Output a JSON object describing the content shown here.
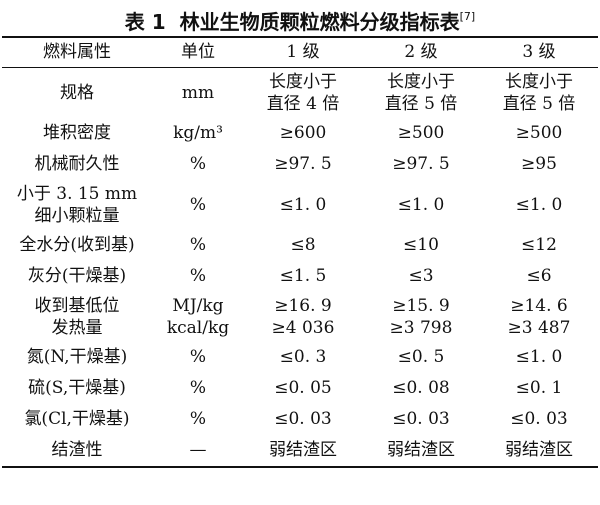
{
  "title": {
    "number": "表 1",
    "text": "林业生物质颗粒燃料分级指标表",
    "ref": "[7]"
  },
  "table": {
    "headers": [
      "燃料属性",
      "单位",
      "1 级",
      "2 级",
      "3 级"
    ],
    "rows": [
      {
        "attr": [
          "规格"
        ],
        "unit": [
          "mm"
        ],
        "g1": [
          "长度小于",
          "直径 4 倍"
        ],
        "g2": [
          "长度小于",
          "直径 5 倍"
        ],
        "g3": [
          "长度小于",
          "直径 5 倍"
        ]
      },
      {
        "attr": [
          "堆积密度"
        ],
        "unit": [
          "kg/m³"
        ],
        "g1": [
          "≥600"
        ],
        "g2": [
          "≥500"
        ],
        "g3": [
          "≥500"
        ]
      },
      {
        "attr": [
          "机械耐久性"
        ],
        "unit": [
          "%"
        ],
        "g1": [
          "≥97. 5"
        ],
        "g2": [
          "≥97. 5"
        ],
        "g3": [
          "≥95"
        ]
      },
      {
        "attr": [
          "小于 3. 15 mm",
          "细小颗粒量"
        ],
        "unit": [
          "%"
        ],
        "g1": [
          "≤1. 0"
        ],
        "g2": [
          "≤1. 0"
        ],
        "g3": [
          "≤1. 0"
        ]
      },
      {
        "attr": [
          "全水分(收到基)"
        ],
        "unit": [
          "%"
        ],
        "g1": [
          "≤8"
        ],
        "g2": [
          "≤10"
        ],
        "g3": [
          "≤12"
        ]
      },
      {
        "attr": [
          "灰分(干燥基)"
        ],
        "unit": [
          "%"
        ],
        "g1": [
          "≤1. 5"
        ],
        "g2": [
          "≤3"
        ],
        "g3": [
          "≤6"
        ]
      },
      {
        "attr": [
          "收到基低位",
          "发热量"
        ],
        "unit": [
          "MJ/kg",
          "kcal/kg"
        ],
        "g1": [
          "≥16. 9",
          "≥4 036"
        ],
        "g2": [
          "≥15. 9",
          "≥3 798"
        ],
        "g3": [
          "≥14. 6",
          "≥3 487"
        ]
      },
      {
        "attr": [
          "氮(N,干燥基)"
        ],
        "unit": [
          "%"
        ],
        "g1": [
          "≤0. 3"
        ],
        "g2": [
          "≤0. 5"
        ],
        "g3": [
          "≤1. 0"
        ]
      },
      {
        "attr": [
          "硫(S,干燥基)"
        ],
        "unit": [
          "%"
        ],
        "g1": [
          "≤0. 05"
        ],
        "g2": [
          "≤0. 08"
        ],
        "g3": [
          "≤0. 1"
        ]
      },
      {
        "attr": [
          "氯(Cl,干燥基)"
        ],
        "unit": [
          "%"
        ],
        "g1": [
          "≤0. 03"
        ],
        "g2": [
          "≤0. 03"
        ],
        "g3": [
          "≤0. 03"
        ]
      },
      {
        "attr": [
          "结渣性"
        ],
        "unit": [
          "—"
        ],
        "g1": [
          "弱结渣区"
        ],
        "g2": [
          "弱结渣区"
        ],
        "g3": [
          "弱结渣区"
        ]
      }
    ]
  }
}
